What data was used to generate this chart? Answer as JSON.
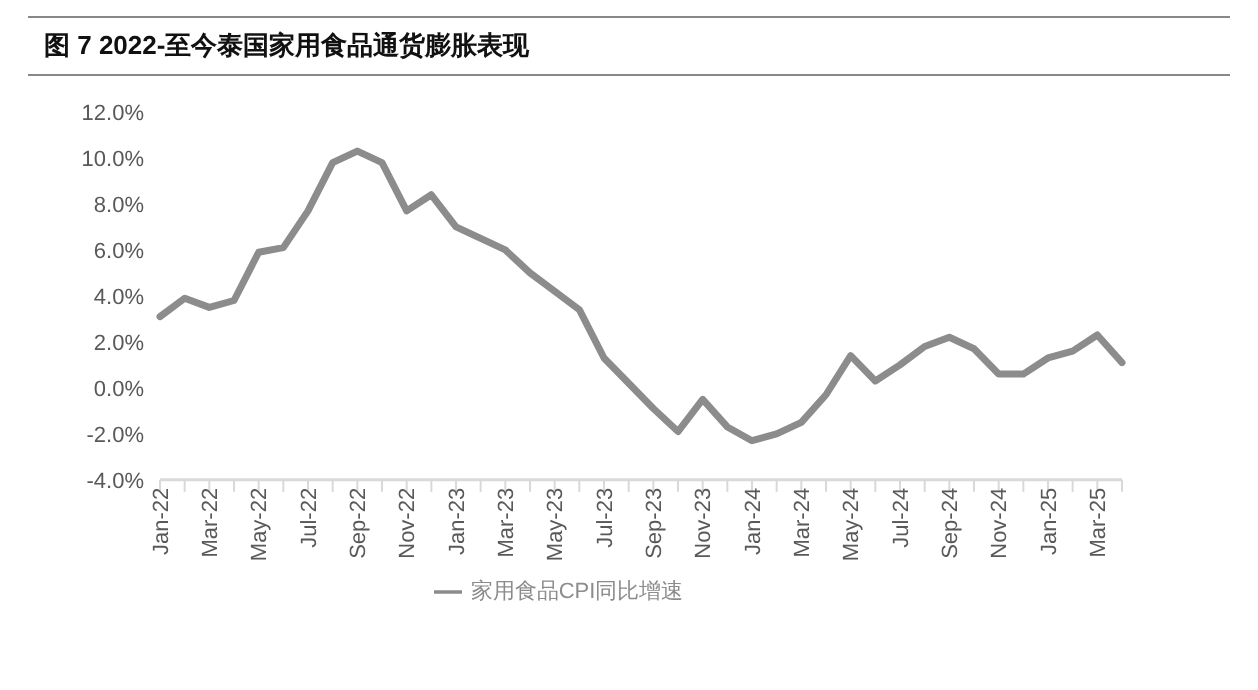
{
  "chart_data": {
    "type": "line",
    "title": "图 7  2022-至今泰国家用食品通货膨胀表现",
    "categories": [
      "Jan-22",
      null,
      "Mar-22",
      null,
      "May-22",
      null,
      "Jul-22",
      null,
      "Sep-22",
      null,
      "Nov-22",
      null,
      "Jan-23",
      null,
      "Mar-23",
      null,
      "May-23",
      null,
      "Jul-23",
      null,
      "Sep-23",
      null,
      "Nov-23",
      null,
      "Jan-24",
      null,
      "Mar-24",
      null,
      "May-24",
      null,
      "Jul-24",
      null,
      "Sep-24",
      null,
      "Nov-24",
      null,
      "Jan-25",
      null,
      "Mar-25",
      null
    ],
    "series": [
      {
        "name": "家用食品CPI同比增速",
        "color": "#8c8c8c",
        "values": [
          3.1,
          3.9,
          3.5,
          3.8,
          5.9,
          6.1,
          7.7,
          9.8,
          10.3,
          9.8,
          7.7,
          8.4,
          7.0,
          6.5,
          6.0,
          5.0,
          4.2,
          3.4,
          1.3,
          0.2,
          -0.9,
          -1.9,
          -0.5,
          -1.7,
          -2.3,
          -2.0,
          -1.5,
          -0.3,
          1.4,
          0.3,
          1.0,
          1.8,
          2.2,
          1.7,
          0.6,
          0.6,
          1.3,
          1.6,
          2.3,
          1.1
        ]
      }
    ],
    "ylim": [
      -4,
      12
    ],
    "yticks": [
      {
        "value": -4,
        "label": "-4.0%"
      },
      {
        "value": -2,
        "label": "-2.0%"
      },
      {
        "value": 0,
        "label": "0.0%"
      },
      {
        "value": 2,
        "label": "2.0%"
      },
      {
        "value": 4,
        "label": "4.0%"
      },
      {
        "value": 6,
        "label": "6.0%"
      },
      {
        "value": 8,
        "label": "8.0%"
      },
      {
        "value": 10,
        "label": "10.0%"
      },
      {
        "value": 12,
        "label": "12.0%"
      }
    ],
    "grid": false,
    "legend": "bottom",
    "marker": "none",
    "line_style": "solid"
  }
}
